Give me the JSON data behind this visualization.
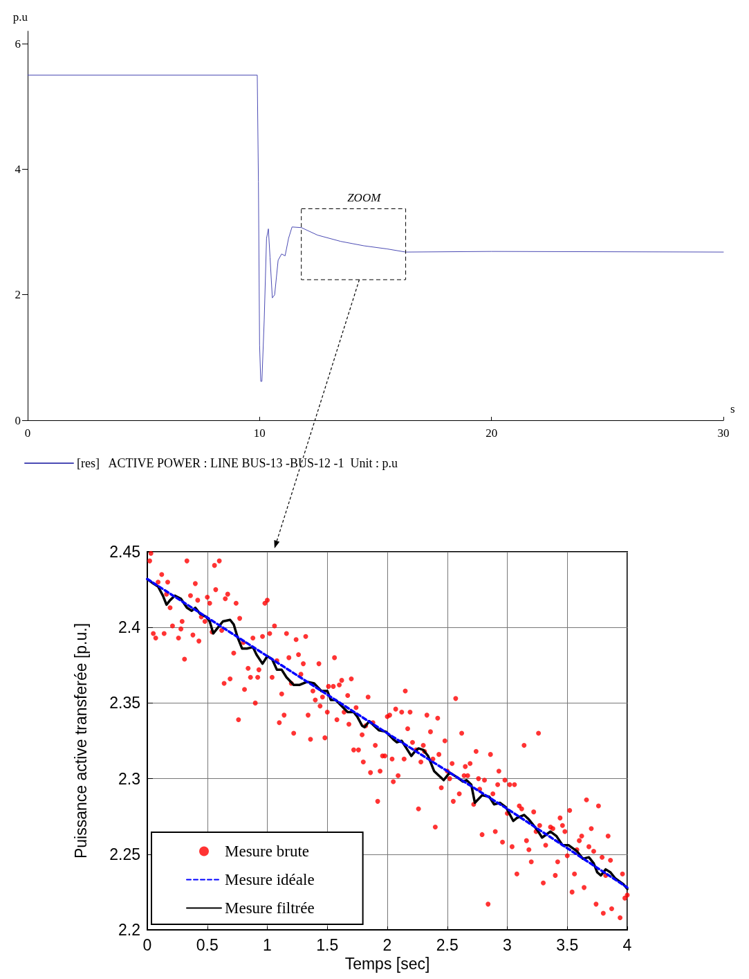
{
  "chart_data": [
    {
      "type": "line",
      "xlabel": "s",
      "ylabel": "p.u",
      "xlim": [
        0,
        30
      ],
      "xticks": [
        0,
        10,
        20,
        30
      ],
      "ylim": [
        0,
        6.2
      ],
      "yticks": [
        0,
        2,
        4,
        6
      ],
      "grid": false,
      "legend": "bottom left",
      "annotations": [
        "ZOOM"
      ],
      "series": [
        {
          "name": "[res]   ACTIVE POWER : LINE BUS-13 -BUS-12 -1  Unit : p.u",
          "color": "#4b4bb4",
          "x": [
            0,
            9.9,
            9.95,
            10.0,
            10.05,
            10.1,
            10.2,
            10.3,
            10.38,
            10.45,
            10.55,
            10.65,
            10.8,
            10.95,
            11.1,
            11.25,
            11.4,
            11.8,
            12.5,
            13.5,
            14.5,
            15.5,
            16.3,
            20,
            30
          ],
          "values": [
            5.5,
            5.5,
            3.8,
            1.2,
            0.62,
            0.62,
            1.6,
            2.9,
            3.05,
            2.6,
            1.95,
            2.0,
            2.55,
            2.65,
            2.62,
            2.9,
            3.08,
            3.07,
            2.95,
            2.85,
            2.78,
            2.73,
            2.68,
            2.69,
            2.68
          ]
        }
      ]
    },
    {
      "type": "line",
      "xlabel": "Temps [sec]",
      "ylabel": "Puissance active transferée [p.u.]",
      "xlim": [
        0,
        4
      ],
      "xticks": [
        0,
        0.5,
        1,
        1.5,
        2,
        2.5,
        3,
        3.5,
        4
      ],
      "ylim": [
        2.2,
        2.45
      ],
      "yticks": [
        2.2,
        2.25,
        2.3,
        2.35,
        2.4,
        2.45
      ],
      "grid": true,
      "legend": "bottom left",
      "series": [
        {
          "name": "Mesure brute",
          "type": "scatter",
          "marker": "circle",
          "color": "#ff0000",
          "x": [
            0.02,
            0.03,
            0.33,
            0.56,
            0.6,
            0.12,
            0.17,
            0.09,
            0.4,
            0.57,
            0.67,
            0.16,
            0.36,
            0.42,
            0.5,
            0.52,
            0.65,
            0.74,
            0.98,
            1.0,
            0.19,
            0.45,
            0.29,
            0.48,
            0.21,
            0.77,
            1.06,
            0.05,
            0.14,
            0.07,
            0.28,
            0.26,
            0.38,
            0.43,
            0.54,
            0.62,
            0.31,
            0.8,
            0.88,
            0.96,
            1.02,
            1.16,
            1.24,
            1.32,
            0.72,
            1.18,
            1.26,
            1.3,
            1.43,
            1.56,
            1.08,
            0.84,
            0.93,
            0.86,
            0.92,
            1.04,
            0.64,
            0.69,
            0.81,
            1.28,
            1.2,
            0.9,
            1.12,
            1.38,
            1.4,
            1.46,
            1.51,
            1.55,
            1.6,
            1.62,
            1.7,
            1.67,
            1.84,
            1.44,
            1.5,
            1.14,
            1.34,
            1.74,
            1.64,
            1.58,
            1.68,
            1.1,
            0.76,
            1.22,
            1.36,
            1.48,
            1.79,
            1.88,
            1.82,
            2.0,
            1.9,
            1.72,
            1.76,
            1.96,
            1.98,
            1.8,
            1.86,
            1.94,
            1.92,
            2.15,
            2.57,
            2.02,
            2.07,
            2.12,
            2.19,
            2.33,
            2.42,
            2.36,
            2.17,
            2.62,
            3.26,
            3.14,
            2.21,
            2.48,
            2.3,
            2.24,
            2.31,
            2.38,
            2.43,
            2.28,
            2.14,
            2.04,
            2.74,
            2.86,
            2.54,
            2.65,
            2.69,
            2.5,
            2.52,
            2.64,
            2.67,
            2.76,
            2.81,
            2.93,
            2.98,
            3.02,
            3.06,
            2.92,
            2.77,
            2.45,
            2.05,
            2.09,
            2.6,
            2.88,
            2.55,
            2.72,
            2.26,
            3.1,
            3.12,
            3.22,
            3.0,
            3.52,
            3.44,
            3.66,
            3.76,
            3.27,
            3.36,
            3.38,
            3.46,
            3.48,
            3.7,
            3.62,
            3.6,
            3.84,
            3.68,
            3.72,
            3.58,
            3.5,
            3.79,
            3.86,
            3.82,
            3.96,
            3.56,
            3.4,
            3.42,
            3.2,
            3.16,
            3.18,
            3.32,
            3.24,
            2.9,
            2.79,
            2.96,
            3.04,
            2.4,
            3.08,
            3.3,
            3.54,
            3.64,
            3.74,
            3.8,
            3.87,
            3.94,
            3.98,
            4.0,
            2.84
          ],
          "values": [
            2.444,
            2.449,
            2.444,
            2.441,
            2.444,
            2.435,
            2.43,
            2.43,
            2.429,
            2.425,
            2.422,
            2.422,
            2.421,
            2.418,
            2.42,
            2.416,
            2.419,
            2.416,
            2.416,
            2.418,
            2.413,
            2.407,
            2.404,
            2.404,
            2.401,
            2.406,
            2.401,
            2.396,
            2.396,
            2.393,
            2.399,
            2.393,
            2.395,
            2.391,
            2.397,
            2.398,
            2.379,
            2.39,
            2.393,
            2.394,
            2.396,
            2.396,
            2.392,
            2.394,
            2.383,
            2.38,
            2.382,
            2.376,
            2.376,
            2.38,
            2.378,
            2.373,
            2.372,
            2.367,
            2.367,
            2.367,
            2.363,
            2.366,
            2.359,
            2.369,
            2.363,
            2.35,
            2.356,
            2.358,
            2.352,
            2.354,
            2.361,
            2.361,
            2.362,
            2.365,
            2.366,
            2.355,
            2.354,
            2.348,
            2.344,
            2.342,
            2.342,
            2.347,
            2.344,
            2.339,
            2.336,
            2.337,
            2.339,
            2.33,
            2.326,
            2.327,
            2.329,
            2.337,
            2.335,
            2.341,
            2.322,
            2.319,
            2.319,
            2.315,
            2.315,
            2.311,
            2.304,
            2.305,
            2.285,
            2.358,
            2.353,
            2.342,
            2.346,
            2.344,
            2.344,
            2.342,
            2.34,
            2.331,
            2.333,
            2.33,
            2.33,
            2.322,
            2.324,
            2.325,
            2.322,
            2.319,
            2.318,
            2.313,
            2.316,
            2.311,
            2.313,
            2.313,
            2.318,
            2.316,
            2.31,
            2.308,
            2.31,
            2.305,
            2.3,
            2.302,
            2.302,
            2.3,
            2.299,
            2.305,
            2.299,
            2.296,
            2.296,
            2.296,
            2.293,
            2.294,
            2.298,
            2.302,
            2.29,
            2.29,
            2.285,
            2.283,
            2.28,
            2.282,
            2.28,
            2.278,
            2.277,
            2.279,
            2.274,
            2.286,
            2.282,
            2.269,
            2.268,
            2.267,
            2.269,
            2.265,
            2.267,
            2.262,
            2.259,
            2.262,
            2.255,
            2.252,
            2.253,
            2.249,
            2.248,
            2.246,
            2.236,
            2.237,
            2.237,
            2.236,
            2.245,
            2.245,
            2.259,
            2.253,
            2.256,
            2.265,
            2.265,
            2.263,
            2.258,
            2.255,
            2.268,
            2.237,
            2.231,
            2.225,
            2.228,
            2.217,
            2.211,
            2.214,
            2.208,
            2.221,
            2.223,
            2.217
          ]
        },
        {
          "name": "Mesure idéale",
          "line_style": "dashed",
          "color": "#0000ff",
          "x": [
            0,
            1,
            2,
            3,
            4
          ],
          "values": [
            2.432,
            2.381,
            2.33,
            2.28,
            2.228
          ]
        },
        {
          "name": "Mesure filtrée",
          "line_style": "solid",
          "color": "#000000",
          "x": [
            0,
            0.05,
            0.09,
            0.13,
            0.16,
            0.19,
            0.23,
            0.28,
            0.33,
            0.37,
            0.4,
            0.44,
            0.49,
            0.52,
            0.55,
            0.59,
            0.63,
            0.69,
            0.72,
            0.75,
            0.79,
            0.83,
            0.88,
            0.91,
            0.96,
            1.0,
            1.04,
            1.08,
            1.12,
            1.16,
            1.22,
            1.27,
            1.33,
            1.39,
            1.45,
            1.5,
            1.53,
            1.57,
            1.62,
            1.67,
            1.72,
            1.75,
            1.79,
            1.81,
            1.85,
            1.89,
            1.93,
            1.99,
            2.0,
            2.05,
            2.08,
            2.12,
            2.16,
            2.2,
            2.23,
            2.26,
            2.3,
            2.34,
            2.39,
            2.43,
            2.47,
            2.52,
            2.58,
            2.63,
            2.66,
            2.7,
            2.73,
            2.79,
            2.85,
            2.89,
            2.94,
            2.99,
            3.05,
            3.08,
            3.14,
            3.18,
            3.25,
            3.29,
            3.36,
            3.41,
            3.46,
            3.51,
            3.58,
            3.63,
            3.68,
            3.72,
            3.75,
            3.78,
            3.82,
            3.86,
            3.9,
            3.97,
            4.0
          ],
          "values": [
            2.432,
            2.429,
            2.427,
            2.421,
            2.415,
            2.418,
            2.421,
            2.419,
            2.413,
            2.411,
            2.413,
            2.409,
            2.407,
            2.404,
            2.396,
            2.4,
            2.404,
            2.405,
            2.402,
            2.394,
            2.386,
            2.386,
            2.387,
            2.382,
            2.376,
            2.381,
            2.379,
            2.372,
            2.372,
            2.367,
            2.362,
            2.362,
            2.364,
            2.363,
            2.358,
            2.358,
            2.352,
            2.352,
            2.348,
            2.344,
            2.344,
            2.341,
            2.335,
            2.334,
            2.338,
            2.335,
            2.332,
            2.331,
            2.33,
            2.326,
            2.324,
            2.325,
            2.32,
            2.315,
            2.318,
            2.32,
            2.319,
            2.315,
            2.305,
            2.302,
            2.299,
            2.304,
            2.301,
            2.298,
            2.299,
            2.296,
            2.284,
            2.289,
            2.288,
            2.283,
            2.284,
            2.281,
            2.272,
            2.274,
            2.276,
            2.273,
            2.266,
            2.261,
            2.265,
            2.262,
            2.256,
            2.256,
            2.252,
            2.247,
            2.248,
            2.244,
            2.238,
            2.236,
            2.24,
            2.238,
            2.234,
            2.23,
            2.227
          ]
        }
      ]
    }
  ]
}
